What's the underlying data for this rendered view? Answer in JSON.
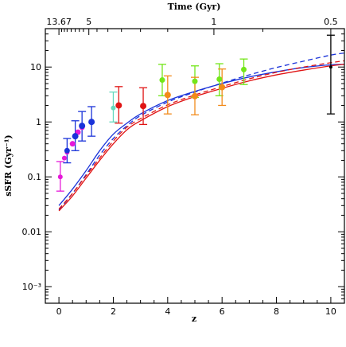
{
  "chart_data": {
    "type": "scatter",
    "xlabel": "z",
    "ylabel": "sSFR (Gyr⁻¹)",
    "top_axis_label": "Time (Gyr)",
    "xlim": [
      -0.5,
      10.5
    ],
    "ylim": [
      0.0005,
      50
    ],
    "yscale": "log",
    "x_ticks": [
      "0",
      "2",
      "4",
      "6",
      "8",
      "10"
    ],
    "y_ticks": [
      "10⁻³",
      "0.01",
      "0.1",
      "1",
      "10"
    ],
    "top_ticks": [
      "13.67",
      "5",
      "1",
      "0.5"
    ],
    "legend": "none",
    "colors": {
      "blue": "#1a33d9",
      "red": "#e01414",
      "magenta": "#e619d9",
      "cyan": "#66d9bf",
      "orange": "#f28a19",
      "green": "#73e619",
      "black": "#000000"
    },
    "model_curves": [
      {
        "color": "blue",
        "style": "solid",
        "x": [
          0,
          0.5,
          1,
          1.5,
          2,
          2.5,
          3,
          4,
          5,
          6,
          7,
          8,
          9,
          10,
          10.5
        ],
        "y": [
          0.03,
          0.06,
          0.13,
          0.3,
          0.6,
          0.95,
          1.4,
          2.45,
          3.6,
          5.0,
          6.6,
          8.2,
          9.8,
          11.0,
          11.2
        ]
      },
      {
        "color": "blue",
        "style": "dashed",
        "x": [
          0,
          0.5,
          1,
          1.5,
          2,
          2.5,
          3,
          4,
          5,
          6,
          7,
          8,
          9,
          10,
          10.5
        ],
        "y": [
          0.025,
          0.05,
          0.11,
          0.25,
          0.5,
          0.85,
          1.3,
          2.3,
          3.5,
          5.1,
          7.2,
          9.8,
          12.8,
          16.5,
          18.0
        ]
      },
      {
        "color": "red",
        "style": "solid",
        "x": [
          0,
          0.5,
          1,
          1.5,
          2,
          2.5,
          3,
          4,
          5,
          6,
          7,
          8,
          9,
          10,
          10.5
        ],
        "y": [
          0.024,
          0.045,
          0.095,
          0.2,
          0.4,
          0.72,
          1.05,
          1.9,
          2.9,
          4.1,
          5.6,
          7.2,
          8.8,
          10.5,
          11.2
        ]
      },
      {
        "color": "red",
        "style": "dashed",
        "x": [
          0,
          0.5,
          1,
          1.5,
          2,
          2.5,
          3,
          4,
          5,
          6,
          7,
          8,
          9,
          10,
          10.5
        ],
        "y": [
          0.026,
          0.05,
          0.105,
          0.22,
          0.45,
          0.8,
          1.15,
          2.05,
          3.1,
          4.4,
          6.1,
          8.0,
          10.0,
          12.0,
          13.0
        ]
      }
    ],
    "data_points": [
      {
        "color": "magenta",
        "x": 0.05,
        "y": 0.1,
        "lo": 0.055,
        "hi": 0.19,
        "size": 3
      },
      {
        "color": "magenta",
        "x": 0.2,
        "y": 0.22,
        "lo": null,
        "hi": null,
        "size": 3
      },
      {
        "color": "magenta",
        "x": 0.3,
        "y": 0.28,
        "lo": null,
        "hi": null,
        "size": 3
      },
      {
        "color": "magenta",
        "x": 0.5,
        "y": 0.4,
        "lo": null,
        "hi": null,
        "size": 3.5
      },
      {
        "color": "magenta",
        "x": 0.7,
        "y": 0.65,
        "lo": null,
        "hi": null,
        "size": 3.5
      },
      {
        "color": "magenta",
        "x": 0.85,
        "y": 0.8,
        "lo": null,
        "hi": null,
        "size": 3.5
      },
      {
        "color": "blue",
        "x": 0.3,
        "y": 0.3,
        "lo": 0.18,
        "hi": 0.5,
        "size": 3.5
      },
      {
        "color": "blue",
        "x": 0.6,
        "y": 0.55,
        "lo": 0.3,
        "hi": 1.05,
        "size": 4
      },
      {
        "color": "blue",
        "x": 0.85,
        "y": 0.85,
        "lo": 0.45,
        "hi": 1.55,
        "size": 4
      },
      {
        "color": "blue",
        "x": 1.2,
        "y": 1.0,
        "lo": 0.55,
        "hi": 1.9,
        "size": 4
      },
      {
        "color": "cyan",
        "x": 2.0,
        "y": 1.8,
        "lo": 1.0,
        "hi": 3.5,
        "size": 3
      },
      {
        "color": "red",
        "x": 2.2,
        "y": 2.0,
        "lo": 0.95,
        "hi": 4.4,
        "size": 4
      },
      {
        "color": "red",
        "x": 3.1,
        "y": 1.95,
        "lo": 0.9,
        "hi": 4.2,
        "size": 4
      },
      {
        "color": "green",
        "x": 3.8,
        "y": 5.8,
        "lo": 3.0,
        "hi": 11.2,
        "size": 3.5
      },
      {
        "color": "green",
        "x": 5.0,
        "y": 5.5,
        "lo": 2.8,
        "hi": 10.5,
        "size": 3.5
      },
      {
        "color": "green",
        "x": 5.9,
        "y": 6.0,
        "lo": 3.0,
        "hi": 11.5,
        "size": 3.5
      },
      {
        "color": "green",
        "x": 6.8,
        "y": 9.0,
        "lo": 4.8,
        "hi": 14.0,
        "size": 3.5
      },
      {
        "color": "orange",
        "x": 4.0,
        "y": 3.1,
        "lo": 1.4,
        "hi": 6.9,
        "size": 4
      },
      {
        "color": "orange",
        "x": 5.0,
        "y": 2.95,
        "lo": 1.35,
        "hi": 6.5,
        "size": 4
      },
      {
        "color": "orange",
        "x": 6.0,
        "y": 4.3,
        "lo": 2.0,
        "hi": 9.2,
        "size": 4
      },
      {
        "color": "black",
        "x": 10.0,
        "y": 10.0,
        "lo": 1.4,
        "hi": 38.0,
        "size": 2
      }
    ]
  }
}
